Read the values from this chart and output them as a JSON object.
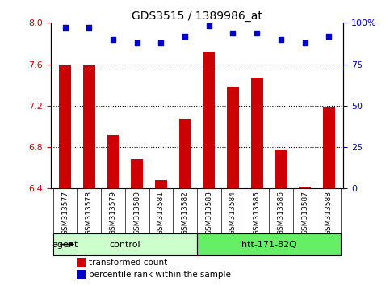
{
  "title": "GDS3515 / 1389986_at",
  "samples": [
    "GSM313577",
    "GSM313578",
    "GSM313579",
    "GSM313580",
    "GSM313581",
    "GSM313582",
    "GSM313583",
    "GSM313584",
    "GSM313585",
    "GSM313586",
    "GSM313587",
    "GSM313588"
  ],
  "red_values": [
    7.59,
    7.59,
    6.92,
    6.68,
    6.48,
    7.07,
    7.72,
    7.38,
    7.47,
    6.77,
    6.42,
    7.18
  ],
  "blue_values": [
    97,
    97,
    90,
    88,
    88,
    92,
    98,
    94,
    94,
    90,
    88,
    92
  ],
  "ylim_left": [
    6.4,
    8.0
  ],
  "ylim_right": [
    0,
    100
  ],
  "yticks_left": [
    6.4,
    6.8,
    7.2,
    7.6,
    8.0
  ],
  "yticks_right": [
    0,
    25,
    50,
    75,
    100
  ],
  "ytick_labels_right": [
    "0",
    "25",
    "50",
    "75",
    "100%"
  ],
  "groups": [
    {
      "label": "control",
      "color_light": "#ccffcc",
      "color_dark": "#66dd66"
    },
    {
      "label": "htt-171-82Q",
      "color_light": "#66ee66",
      "color_dark": "#33cc33"
    }
  ],
  "agent_label": "agent",
  "bar_color": "#cc0000",
  "dot_color": "#0000cc",
  "left_axis_color": "#cc0000",
  "right_axis_color": "#0000cc",
  "grid_color": "#000000",
  "xtick_bg_color": "#d8d8d8",
  "plot_bg_color": "#ffffff",
  "legend_red": "transformed count",
  "legend_blue": "percentile rank within the sample",
  "control_color": "#ccffcc",
  "htt_color": "#66ee66"
}
